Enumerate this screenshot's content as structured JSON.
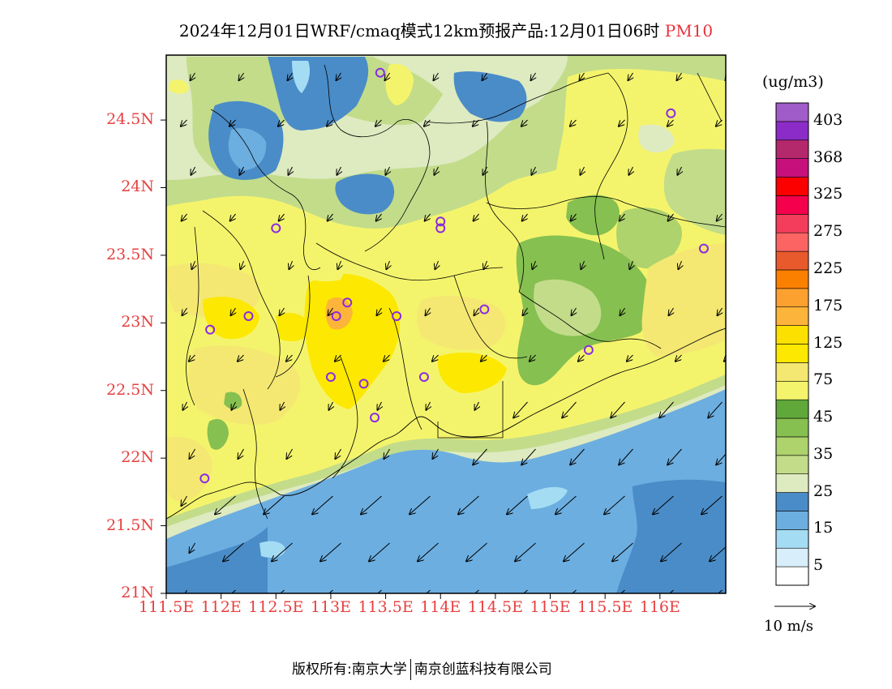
{
  "title": {
    "main": "2024年12月01日WRF/cmaq模式12km预报产品:12月01日06时",
    "variable": "PM10"
  },
  "colors": {
    "lon_lat_labels": "#e84040",
    "station_marker": "#8a2be2",
    "sea": "#6caee0"
  },
  "lat_labels": [
    {
      "text": "24.5N",
      "value": 24.5
    },
    {
      "text": "24N",
      "value": 24.0
    },
    {
      "text": "23.5N",
      "value": 23.5
    },
    {
      "text": "23N",
      "value": 23.0
    },
    {
      "text": "22.5N",
      "value": 22.5
    },
    {
      "text": "22N",
      "value": 22.0
    },
    {
      "text": "21.5N",
      "value": 21.5
    },
    {
      "text": "21N",
      "value": 21.0
    }
  ],
  "lon_labels": [
    {
      "text": "111.5E",
      "value": 111.5
    },
    {
      "text": "112E",
      "value": 112.0
    },
    {
      "text": "112.5E",
      "value": 112.5
    },
    {
      "text": "113E",
      "value": 113.0
    },
    {
      "text": "113.5E",
      "value": 113.5
    },
    {
      "text": "114E",
      "value": 114.0
    },
    {
      "text": "114.5E",
      "value": 114.5
    },
    {
      "text": "115E",
      "value": 115.0
    },
    {
      "text": "115.5E",
      "value": 115.5
    },
    {
      "text": "116E",
      "value": 116.0
    }
  ],
  "colorbar": {
    "unit": "(ug/m3)",
    "labels": [
      "403",
      "368",
      "325",
      "275",
      "225",
      "175",
      "125",
      "75",
      "45",
      "35",
      "25",
      "15",
      "5"
    ],
    "colors": [
      "#ffffff",
      "#d8eefa",
      "#a4dcf4",
      "#6caee0",
      "#4a8cc8",
      "#deeac0",
      "#c2dc8a",
      "#aed26c",
      "#86c050",
      "#60a83a",
      "#f4f46c",
      "#f4e872",
      "#fce800",
      "#fce000",
      "#fcb43a",
      "#fca030",
      "#fc8000",
      "#e85a2c",
      "#fc6464",
      "#f43c5c",
      "#f4004c",
      "#fc0000",
      "#c8107c",
      "#b4286c",
      "#8c2cc8",
      "#a05cc8"
    ]
  },
  "wind_reference": {
    "label": "10 m/s"
  },
  "stations": [
    {
      "lon": 113.45,
      "lat": 24.85
    },
    {
      "lon": 114.0,
      "lat": 23.7
    },
    {
      "lon": 112.5,
      "lat": 23.7
    },
    {
      "lon": 116.1,
      "lat": 24.55
    },
    {
      "lon": 116.4,
      "lat": 23.55
    },
    {
      "lon": 112.25,
      "lat": 23.05
    },
    {
      "lon": 111.9,
      "lat": 22.95
    },
    {
      "lon": 113.05,
      "lat": 23.05
    },
    {
      "lon": 113.15,
      "lat": 23.15
    },
    {
      "lon": 113.6,
      "lat": 23.05
    },
    {
      "lon": 114.0,
      "lat": 23.75
    },
    {
      "lon": 114.4,
      "lat": 23.1
    },
    {
      "lon": 113.0,
      "lat": 22.6
    },
    {
      "lon": 113.3,
      "lat": 22.55
    },
    {
      "lon": 113.85,
      "lat": 22.6
    },
    {
      "lon": 113.4,
      "lat": 22.3
    },
    {
      "lon": 115.35,
      "lat": 22.8
    },
    {
      "lon": 111.85,
      "lat": 21.85
    }
  ],
  "footer": {
    "left": "版权所有:南京大学",
    "right": "南京创蓝科技有限公司"
  }
}
